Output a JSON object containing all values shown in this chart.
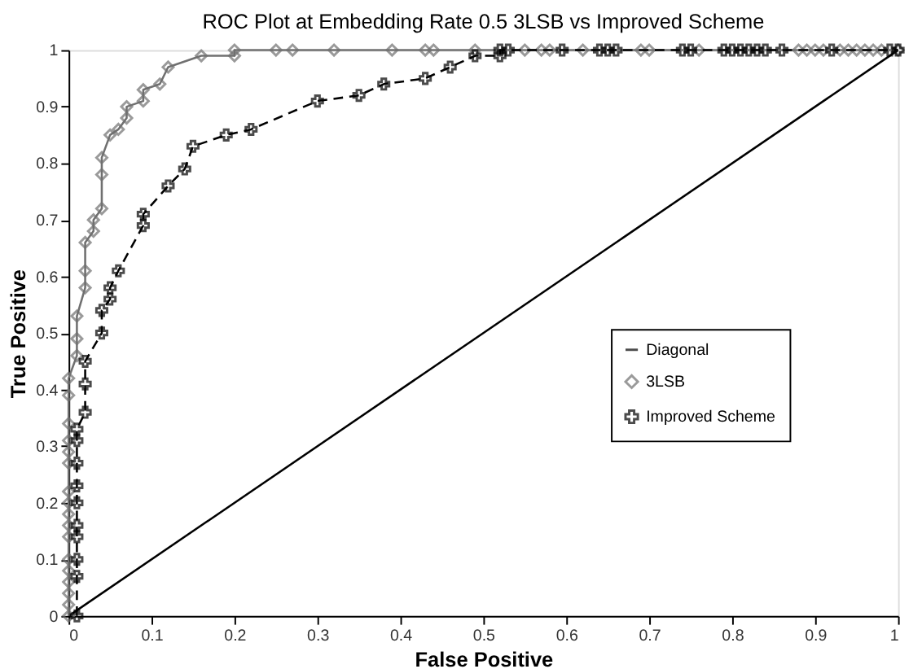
{
  "chart_data": {
    "type": "line",
    "title": "ROC Plot at Embedding Rate 0.5 3LSB vs Improved Scheme",
    "xlabel": "False Positive",
    "ylabel": "True Positive",
    "xlim": [
      0,
      1
    ],
    "ylim": [
      0,
      1
    ],
    "xticks": [
      0,
      0.1,
      0.2,
      0.3,
      0.4,
      0.5,
      0.6,
      0.7,
      0.8,
      0.9,
      1
    ],
    "yticks": [
      0,
      0.1,
      0.2,
      0.3,
      0.4,
      0.5,
      0.6,
      0.7,
      0.8,
      0.9,
      1
    ],
    "grid": false,
    "legend": "right",
    "series": [
      {
        "name": "Diagonal",
        "color": "#000000",
        "line_style": "solid",
        "x": [
          0,
          1
        ],
        "values": [
          0,
          1
        ]
      },
      {
        "name": "3LSB",
        "color": "#707070",
        "marker": "diamond",
        "line_style": "solid",
        "x": [
          0,
          0,
          0,
          0,
          0,
          0,
          0,
          0,
          0,
          0,
          0,
          0,
          0,
          0,
          0,
          0,
          0,
          0.01,
          0.01,
          0.01,
          0.02,
          0.02,
          0.02,
          0.03,
          0.03,
          0.04,
          0.04,
          0.04,
          0.05,
          0.06,
          0.07,
          0.07,
          0.09,
          0.09,
          0.11,
          0.12,
          0.16,
          0.2,
          0.2,
          0.25,
          0.27,
          0.32,
          0.39,
          0.43,
          0.44,
          0.49,
          0.55,
          0.57,
          0.58,
          0.62,
          0.69,
          0.7,
          0.76,
          0.88,
          0.89,
          0.9,
          0.91,
          0.93,
          0.94,
          0.95,
          0.96,
          0.97,
          0.98,
          1
        ],
        "values": [
          0,
          0.02,
          0.04,
          0.06,
          0.08,
          0.1,
          0.14,
          0.16,
          0.18,
          0.2,
          0.22,
          0.27,
          0.29,
          0.31,
          0.34,
          0.39,
          0.42,
          0.46,
          0.49,
          0.53,
          0.58,
          0.61,
          0.66,
          0.68,
          0.7,
          0.72,
          0.78,
          0.81,
          0.85,
          0.86,
          0.88,
          0.9,
          0.91,
          0.93,
          0.94,
          0.97,
          0.99,
          0.99,
          1,
          1,
          1,
          1,
          1,
          1,
          1,
          1,
          1,
          1,
          1,
          1,
          1,
          1,
          1,
          1,
          1,
          1,
          1,
          1,
          1,
          1,
          1,
          1,
          1,
          1
        ]
      },
      {
        "name": "Improved Scheme",
        "color": "#000000",
        "marker": "cross",
        "line_style": "dashed",
        "x": [
          0.01,
          0.01,
          0.01,
          0.01,
          0.01,
          0.01,
          0.01,
          0.01,
          0.01,
          0.01,
          0.02,
          0.02,
          0.02,
          0.04,
          0.04,
          0.05,
          0.05,
          0.06,
          0.09,
          0.09,
          0.12,
          0.14,
          0.15,
          0.19,
          0.22,
          0.3,
          0.35,
          0.38,
          0.43,
          0.46,
          0.49,
          0.52,
          0.52,
          0.53,
          0.595,
          0.64,
          0.65,
          0.66,
          0.74,
          0.75,
          0.79,
          0.8,
          0.81,
          0.82,
          0.83,
          0.84,
          0.86,
          0.92,
          0.99,
          1
        ],
        "values": [
          0,
          0.07,
          0.1,
          0.14,
          0.16,
          0.2,
          0.23,
          0.27,
          0.31,
          0.33,
          0.36,
          0.41,
          0.45,
          0.5,
          0.54,
          0.56,
          0.58,
          0.61,
          0.69,
          0.71,
          0.76,
          0.79,
          0.83,
          0.85,
          0.86,
          0.91,
          0.92,
          0.94,
          0.95,
          0.97,
          0.99,
          0.99,
          1,
          1,
          1,
          1,
          1,
          1,
          1,
          1,
          1,
          1,
          1,
          1,
          1,
          1,
          1,
          1,
          1,
          1
        ]
      }
    ]
  }
}
